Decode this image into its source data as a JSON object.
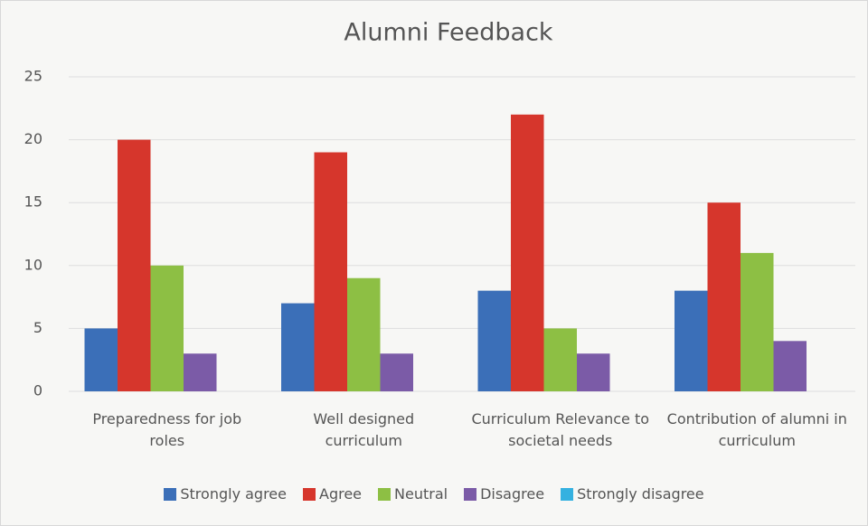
{
  "chart_data": {
    "type": "bar",
    "title": "Alumni Feedback",
    "categories": [
      "Preparedness for job roles",
      "Well designed curriculum",
      "Curriculum Relevance to societal needs",
      "Contribution of alumni in curriculum"
    ],
    "series": [
      {
        "name": "Strongly agree",
        "color": "#3b6fb8",
        "values": [
          5,
          7,
          8,
          8
        ]
      },
      {
        "name": "Agree",
        "color": "#d6362c",
        "values": [
          20,
          19,
          22,
          15
        ]
      },
      {
        "name": "Neutral",
        "color": "#8dbf44",
        "values": [
          10,
          9,
          5,
          11
        ]
      },
      {
        "name": "Disagree",
        "color": "#7b5ba7",
        "values": [
          3,
          3,
          3,
          4
        ]
      },
      {
        "name": "Strongly disagree",
        "color": "#35b1e0",
        "values": [
          0,
          0,
          0,
          0
        ]
      }
    ],
    "ylim": [
      0,
      25
    ],
    "yticks": [
      0,
      5,
      10,
      15,
      20,
      25
    ],
    "grid": true,
    "legend": "bottom"
  }
}
